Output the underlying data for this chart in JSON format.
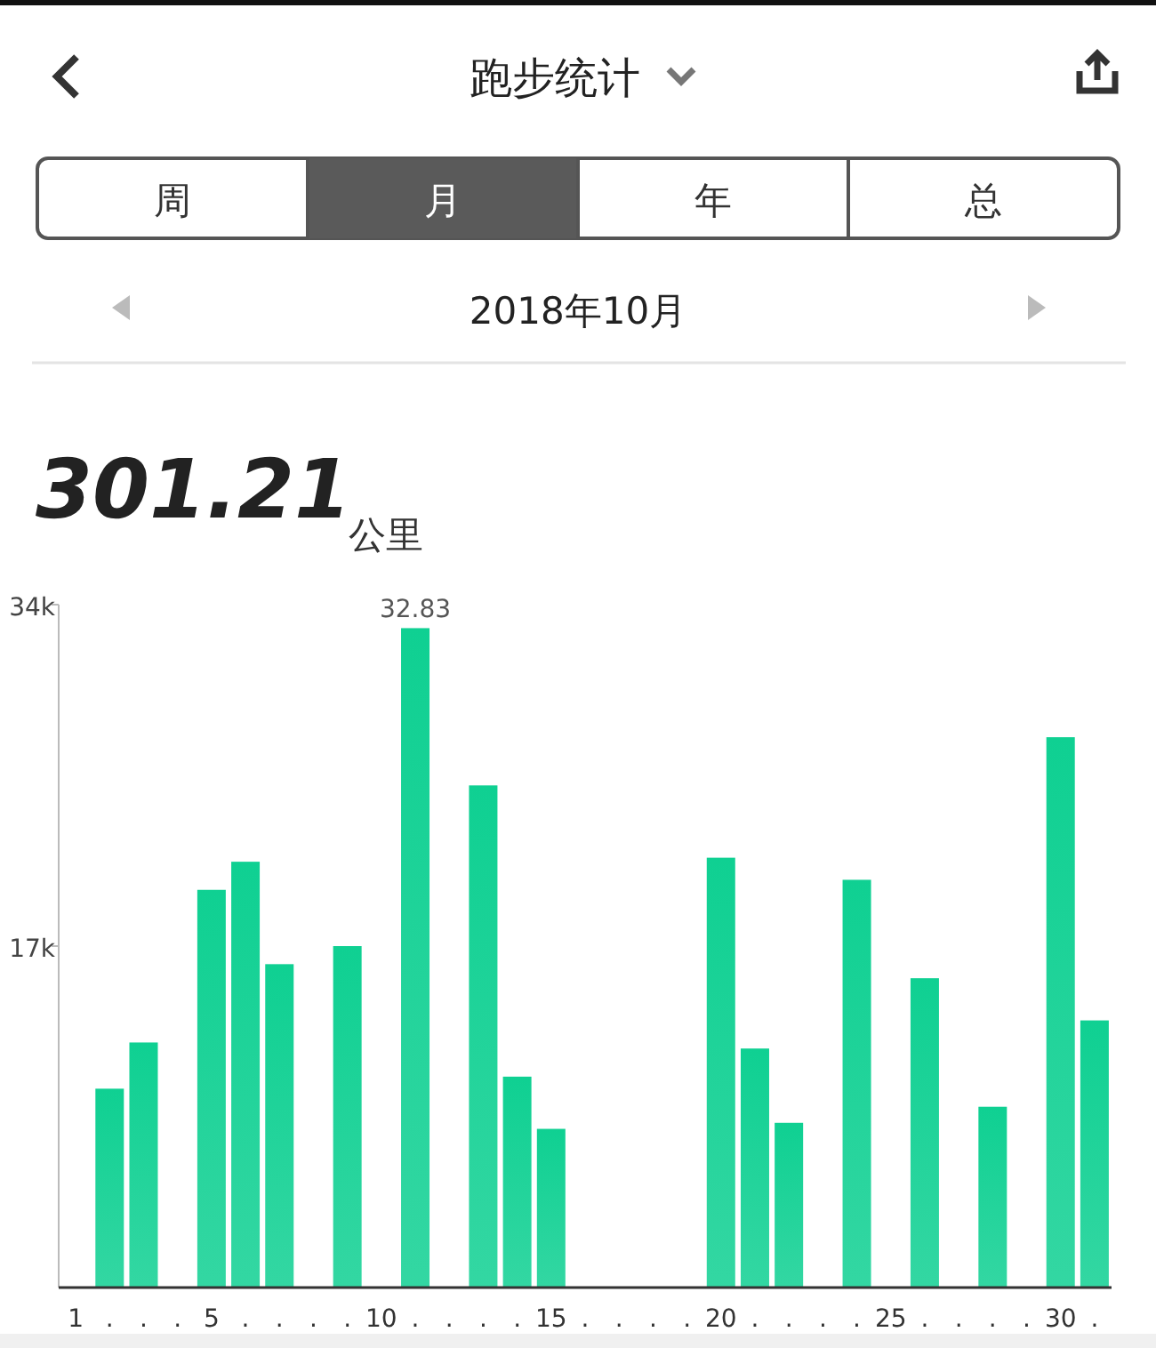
{
  "chart_data": {
    "type": "bar",
    "title": "跑步统计",
    "subtitle": "2018年10月",
    "annotations": [
      "周",
      "月",
      "年",
      "总",
      "301.21",
      "公里"
    ],
    "categories": [
      "1",
      ".",
      ".",
      ".",
      "5",
      ".",
      ".",
      ".",
      ".",
      "10",
      ".",
      ".",
      ".",
      ".",
      "15",
      ".",
      ".",
      ".",
      ".",
      "20",
      ".",
      ".",
      ".",
      ".",
      "25",
      ".",
      ".",
      ".",
      ".",
      "30",
      "."
    ],
    "values": [
      0,
      9.9,
      12.2,
      0,
      19.8,
      21.2,
      16.1,
      0,
      17.0,
      0,
      32.83,
      0,
      25.0,
      10.5,
      7.9,
      0,
      0,
      0,
      0,
      21.4,
      11.9,
      8.2,
      0,
      20.3,
      0,
      15.4,
      0,
      9.0,
      0,
      27.4,
      13.3
    ],
    "value_labels": [
      null,
      null,
      null,
      null,
      null,
      null,
      null,
      null,
      null,
      null,
      "32.83",
      null,
      null,
      null,
      null,
      null,
      null,
      null,
      null,
      null,
      null,
      null,
      null,
      null,
      null,
      null,
      null,
      null,
      null,
      null,
      null
    ],
    "color": "#0fd092",
    "ylim": [
      0,
      34
    ],
    "yticks": [
      {
        "value": 17,
        "label": "17k"
      },
      {
        "value": 34,
        "label": "34k"
      }
    ]
  }
}
